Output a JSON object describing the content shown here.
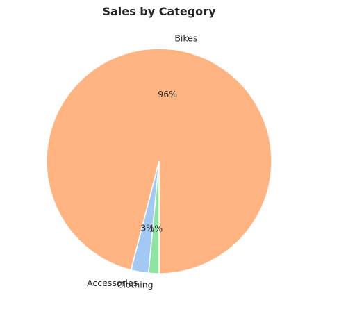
{
  "chart_data": {
    "type": "pie",
    "title": "Sales by Category",
    "categories": [
      "Bikes",
      "Accessories",
      "Clothing"
    ],
    "values": [
      96.0,
      2.5,
      1.5
    ],
    "labels": [
      "96%",
      "3%",
      "1%"
    ],
    "colors": [
      "#ffb482",
      "#a1c9f4",
      "#8de5a1"
    ],
    "start_angle_deg": -90.0,
    "direction": "counterclockwise"
  }
}
